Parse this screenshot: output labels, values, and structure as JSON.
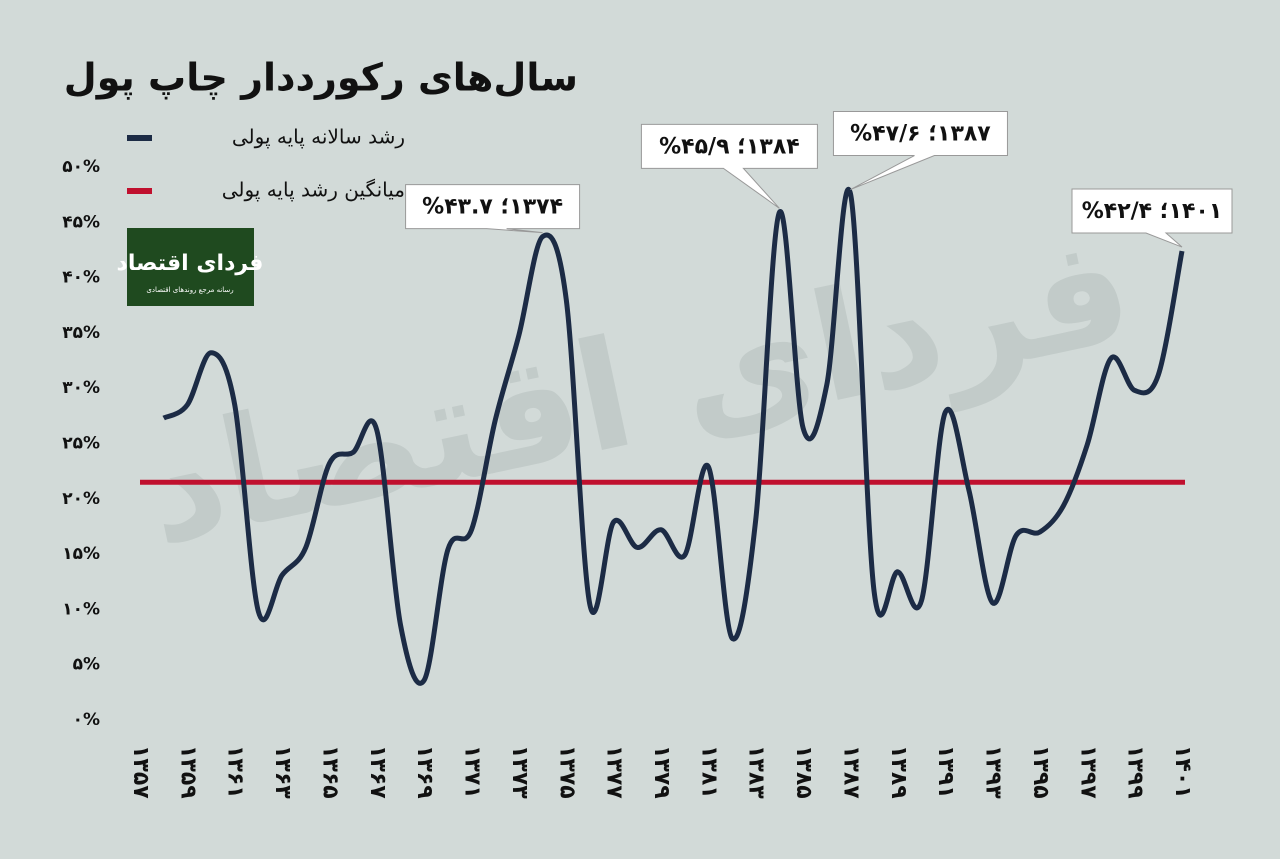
{
  "chart_data": {
    "type": "line",
    "title": "سال‌های رکورددار چاپ پول",
    "logo": {
      "name": "فردای اقتصاد",
      "tagline": "رسانه مرجع روندهای اقتصادی"
    },
    "categories": [
      "۱۳۵۷",
      null,
      "۱۳۵۹",
      null,
      "۱۳۶۱",
      null,
      "۱۳۶۳",
      null,
      "۱۳۶۵",
      null,
      "۱۳۶۷",
      null,
      "۱۳۶۹",
      null,
      "۱۳۷۱",
      null,
      "۱۳۷۳",
      null,
      "۱۳۷۵",
      null,
      "۱۳۷۷",
      null,
      "۱۳۷۹",
      null,
      "۱۳۸۱",
      null,
      "۱۳۸۳",
      null,
      "۱۳۸۵",
      null,
      "۱۳۸۷",
      null,
      "۱۳۸۹",
      null,
      "۱۳۹۱",
      null,
      "۱۳۹۳",
      null,
      "۱۳۹۵",
      null,
      "۱۳۹۷",
      null,
      "۱۳۹۹",
      null,
      "۱۴۰۱"
    ],
    "series": [
      {
        "name": "رشد سالانه پایه پولی",
        "color": "#1c2b45",
        "values": [
          null,
          27.3,
          28.5,
          33.2,
          28.5,
          9.8,
          13.1,
          15.6,
          23.2,
          24.2,
          26.2,
          8.6,
          3.6,
          15.4,
          17.2,
          27.1,
          34.8,
          43.7,
          38.0,
          10.4,
          17.9,
          15.6,
          17.2,
          14.9,
          22.9,
          7.4,
          18.1,
          45.9,
          26.4,
          30.3,
          47.6,
          11.6,
          13.4,
          10.8,
          27.8,
          20.8,
          10.6,
          16.7,
          17.0,
          19.4,
          24.9,
          32.7,
          29.8,
          31.2,
          42.4
        ]
      }
    ],
    "reference_line": {
      "name": "میانگین رشد پایه پولی",
      "color": "#c0102e",
      "value": 21.5
    },
    "annotations": [
      {
        "index": 17,
        "text": "۱۳۷۴؛ ۴۳.۷%"
      },
      {
        "index": 27,
        "text": "۱۳۸۴؛ ۴۵/۹%"
      },
      {
        "index": 30,
        "text": "۱۳۸۷؛ ۴۷/۶%"
      },
      {
        "index": 44,
        "text": "۱۴۰۱؛ ۴۲/۴%"
      }
    ],
    "ylim": [
      0,
      50
    ],
    "yticks": [
      {
        "value": 0,
        "label": "۰%"
      },
      {
        "value": 5,
        "label": "۵%"
      },
      {
        "value": 10,
        "label": "۱۰%"
      },
      {
        "value": 15,
        "label": "۱۵%"
      },
      {
        "value": 20,
        "label": "۲۰%"
      },
      {
        "value": 25,
        "label": "۲۵%"
      },
      {
        "value": 30,
        "label": "۳۰%"
      },
      {
        "value": 35,
        "label": "۳۵%"
      },
      {
        "value": 40,
        "label": "۴۰%"
      },
      {
        "value": 45,
        "label": "۴۵%"
      },
      {
        "value": 50,
        "label": "۵۰%"
      }
    ]
  }
}
